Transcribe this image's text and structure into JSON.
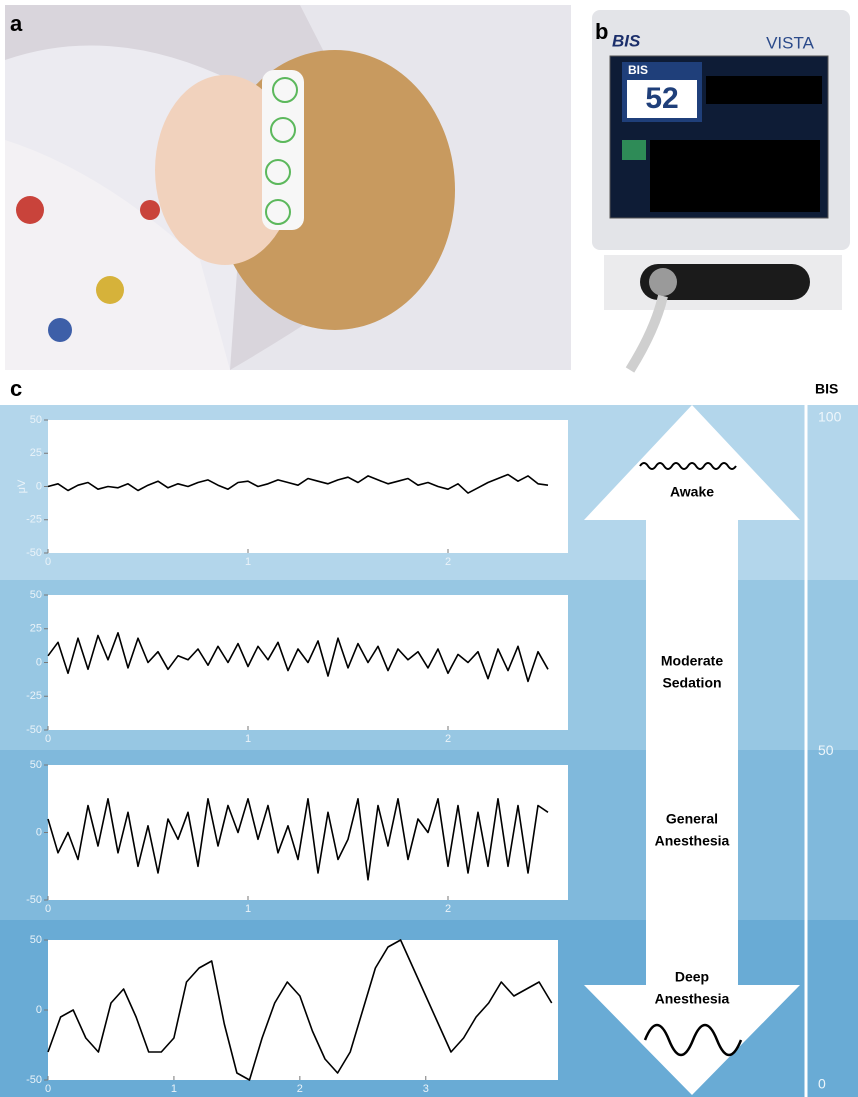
{
  "panel_labels": [
    "a",
    "b",
    "c"
  ],
  "monitor": {
    "logo": "BIS",
    "brand": "VISTA",
    "screen_label": "BIS",
    "screen_value": "52"
  },
  "bis_scale": {
    "label": "BIS",
    "ticks": [
      100,
      50,
      0
    ],
    "lim": [
      0,
      100
    ]
  },
  "stages": [
    {
      "lines": [
        "Awake"
      ]
    },
    {
      "lines": [
        "Moderate",
        "Sedation"
      ]
    },
    {
      "lines": [
        "General",
        "Anesthesia"
      ]
    },
    {
      "lines": [
        "Deep",
        "Anesthesia"
      ]
    }
  ],
  "chart_data": [
    {
      "type": "line",
      "ylabel": "μV",
      "color": "#000000",
      "x": [
        0,
        0.05,
        0.1,
        0.15,
        0.2,
        0.25,
        0.3,
        0.35,
        0.4,
        0.45,
        0.5,
        0.55,
        0.6,
        0.65,
        0.7,
        0.75,
        0.8,
        0.85,
        0.9,
        0.95,
        1,
        1.05,
        1.1,
        1.15,
        1.2,
        1.25,
        1.3,
        1.35,
        1.4,
        1.45,
        1.5,
        1.55,
        1.6,
        1.65,
        1.7,
        1.75,
        1.8,
        1.85,
        1.9,
        1.95,
        2,
        2.05,
        2.1,
        2.15,
        2.2,
        2.25,
        2.3,
        2.35,
        2.4,
        2.45,
        2.5
      ],
      "values": [
        0,
        2,
        -3,
        1,
        3,
        -2,
        0,
        -1,
        2,
        -3,
        1,
        4,
        -1,
        2,
        0,
        3,
        5,
        1,
        -2,
        3,
        4,
        0,
        2,
        5,
        3,
        1,
        6,
        4,
        2,
        5,
        7,
        3,
        8,
        5,
        2,
        4,
        6,
        1,
        3,
        0,
        -2,
        2,
        -5,
        -1,
        3,
        6,
        9,
        4,
        8,
        2,
        1
      ],
      "xlim": [
        0,
        2.6
      ],
      "ylim": [
        -50,
        50
      ],
      "xticks": [
        0,
        1,
        2
      ],
      "yticks": [
        -50,
        -25,
        0,
        25,
        50
      ]
    },
    {
      "type": "line",
      "color": "#000000",
      "x": [
        0,
        0.05,
        0.1,
        0.15,
        0.2,
        0.25,
        0.3,
        0.35,
        0.4,
        0.45,
        0.5,
        0.55,
        0.6,
        0.65,
        0.7,
        0.75,
        0.8,
        0.85,
        0.9,
        0.95,
        1,
        1.05,
        1.1,
        1.15,
        1.2,
        1.25,
        1.3,
        1.35,
        1.4,
        1.45,
        1.5,
        1.55,
        1.6,
        1.65,
        1.7,
        1.75,
        1.8,
        1.85,
        1.9,
        1.95,
        2,
        2.05,
        2.1,
        2.15,
        2.2,
        2.25,
        2.3,
        2.35,
        2.4,
        2.45,
        2.5
      ],
      "values": [
        5,
        15,
        -8,
        18,
        -5,
        20,
        2,
        22,
        -4,
        18,
        0,
        8,
        -5,
        5,
        2,
        10,
        -2,
        12,
        0,
        14,
        -3,
        12,
        2,
        15,
        -6,
        10,
        0,
        16,
        -10,
        18,
        -4,
        14,
        0,
        12,
        -6,
        10,
        2,
        8,
        -4,
        10,
        -8,
        6,
        0,
        8,
        -12,
        10,
        -6,
        12,
        -14,
        8,
        -5
      ],
      "xlim": [
        0,
        2.6
      ],
      "ylim": [
        -50,
        50
      ],
      "xticks": [
        0,
        1,
        2
      ],
      "yticks": [
        -50,
        -25,
        0,
        25,
        50
      ]
    },
    {
      "type": "line",
      "color": "#000000",
      "x": [
        0,
        0.05,
        0.1,
        0.15,
        0.2,
        0.25,
        0.3,
        0.35,
        0.4,
        0.45,
        0.5,
        0.55,
        0.6,
        0.65,
        0.7,
        0.75,
        0.8,
        0.85,
        0.9,
        0.95,
        1,
        1.05,
        1.1,
        1.15,
        1.2,
        1.25,
        1.3,
        1.35,
        1.4,
        1.45,
        1.5,
        1.55,
        1.6,
        1.65,
        1.7,
        1.75,
        1.8,
        1.85,
        1.9,
        1.95,
        2,
        2.05,
        2.1,
        2.15,
        2.2,
        2.25,
        2.3,
        2.35,
        2.4,
        2.45,
        2.5
      ],
      "values": [
        10,
        -15,
        0,
        -20,
        20,
        -10,
        25,
        -15,
        15,
        -25,
        5,
        -30,
        10,
        -5,
        15,
        -25,
        25,
        -10,
        20,
        0,
        25,
        -5,
        20,
        -15,
        5,
        -20,
        25,
        -30,
        15,
        -20,
        -5,
        25,
        -35,
        20,
        -10,
        25,
        -20,
        10,
        0,
        25,
        -25,
        20,
        -30,
        15,
        -25,
        25,
        -25,
        20,
        -30,
        20,
        15
      ],
      "xlim": [
        0,
        2.6
      ],
      "ylim": [
        -50,
        50
      ],
      "xticks": [
        0,
        1,
        2
      ],
      "yticks": [
        -50,
        0,
        50
      ]
    },
    {
      "type": "line",
      "color": "#000000",
      "x": [
        0,
        0.1,
        0.2,
        0.3,
        0.4,
        0.5,
        0.6,
        0.7,
        0.8,
        0.9,
        1,
        1.1,
        1.2,
        1.3,
        1.4,
        1.5,
        1.6,
        1.7,
        1.8,
        1.9,
        2,
        2.1,
        2.2,
        2.3,
        2.4,
        2.5,
        2.6,
        2.7,
        2.8,
        2.9,
        3,
        3.1,
        3.2,
        3.3,
        3.4,
        3.5,
        3.6,
        3.7,
        3.8,
        3.9,
        4
      ],
      "values": [
        -30,
        -5,
        0,
        -20,
        -30,
        5,
        15,
        -5,
        -30,
        -30,
        -20,
        20,
        30,
        35,
        -10,
        -45,
        -50,
        -20,
        5,
        20,
        10,
        -15,
        -35,
        -45,
        -30,
        0,
        30,
        45,
        50,
        30,
        10,
        -10,
        -30,
        -20,
        -5,
        5,
        20,
        10,
        15,
        20,
        5
      ],
      "xlim": [
        0,
        4.05
      ],
      "ylim": [
        -50,
        50
      ],
      "xticks": [
        0,
        1,
        2,
        3
      ],
      "yticks": [
        -50,
        0,
        50
      ]
    }
  ]
}
